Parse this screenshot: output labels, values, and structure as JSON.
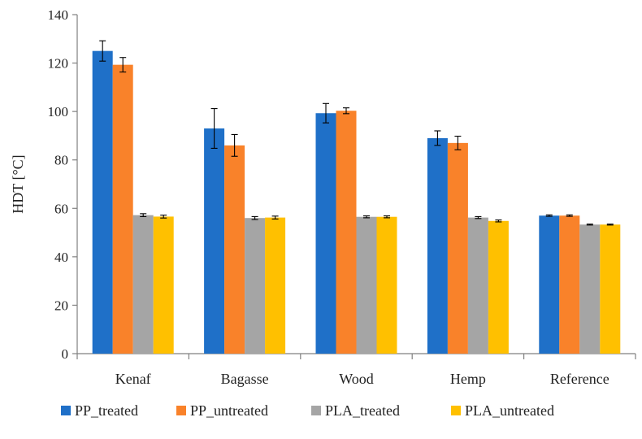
{
  "chart_data": {
    "type": "bar",
    "title": "",
    "xlabel": "",
    "ylabel": "HDT [°C]",
    "ylim": [
      0,
      140
    ],
    "yticks": [
      0,
      20,
      40,
      60,
      80,
      100,
      120,
      140
    ],
    "grid": false,
    "legend_position": "bottom",
    "categories": [
      "Kenaf",
      "Bagasse",
      "Wood",
      "Hemp",
      "Reference"
    ],
    "series": [
      {
        "name": "PP_treated",
        "color": "#1f70c8",
        "values": [
          125,
          93,
          99.3,
          89,
          57
        ],
        "errors": [
          4.2,
          8.2,
          4.0,
          3.0,
          0.3
        ]
      },
      {
        "name": "PP_untreated",
        "color": "#f9822a",
        "values": [
          119.3,
          86,
          100.3,
          87,
          57
        ],
        "errors": [
          3.0,
          4.5,
          1.2,
          2.8,
          0.3
        ]
      },
      {
        "name": "PLA_treated",
        "color": "#a5a5a5",
        "values": [
          57.2,
          56,
          56.5,
          56.2,
          53.3
        ],
        "errors": [
          0.6,
          0.6,
          0.4,
          0.4,
          0.2
        ]
      },
      {
        "name": "PLA_untreated",
        "color": "#ffc000",
        "values": [
          56.6,
          56.2,
          56.5,
          54.8,
          53.3
        ],
        "errors": [
          0.6,
          0.6,
          0.4,
          0.4,
          0.2
        ]
      }
    ]
  }
}
